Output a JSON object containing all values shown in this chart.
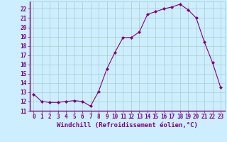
{
  "x": [
    0,
    1,
    2,
    3,
    4,
    5,
    6,
    7,
    8,
    9,
    10,
    11,
    12,
    13,
    14,
    15,
    16,
    17,
    18,
    19,
    20,
    21,
    22,
    23
  ],
  "y": [
    12.8,
    12.0,
    11.9,
    11.9,
    12.0,
    12.1,
    12.0,
    11.5,
    13.1,
    15.5,
    17.3,
    18.9,
    18.9,
    19.5,
    21.4,
    21.7,
    22.0,
    22.2,
    22.5,
    21.9,
    21.0,
    18.4,
    16.2,
    13.5
  ],
  "line_color": "#800080",
  "marker": "D",
  "marker_size": 2,
  "bg_color": "#cceeff",
  "grid_color": "#aacccc",
  "axis_color": "#800080",
  "xlabel": "Windchill (Refroidissement éolien,°C)",
  "xlim": [
    -0.5,
    23.5
  ],
  "ylim": [
    11.0,
    22.8
  ],
  "yticks": [
    11,
    12,
    13,
    14,
    15,
    16,
    17,
    18,
    19,
    20,
    21,
    22
  ],
  "xticks": [
    0,
    1,
    2,
    3,
    4,
    5,
    6,
    7,
    8,
    9,
    10,
    11,
    12,
    13,
    14,
    15,
    16,
    17,
    18,
    19,
    20,
    21,
    22,
    23
  ],
  "tick_fontsize": 5.5,
  "label_fontsize": 6.5
}
